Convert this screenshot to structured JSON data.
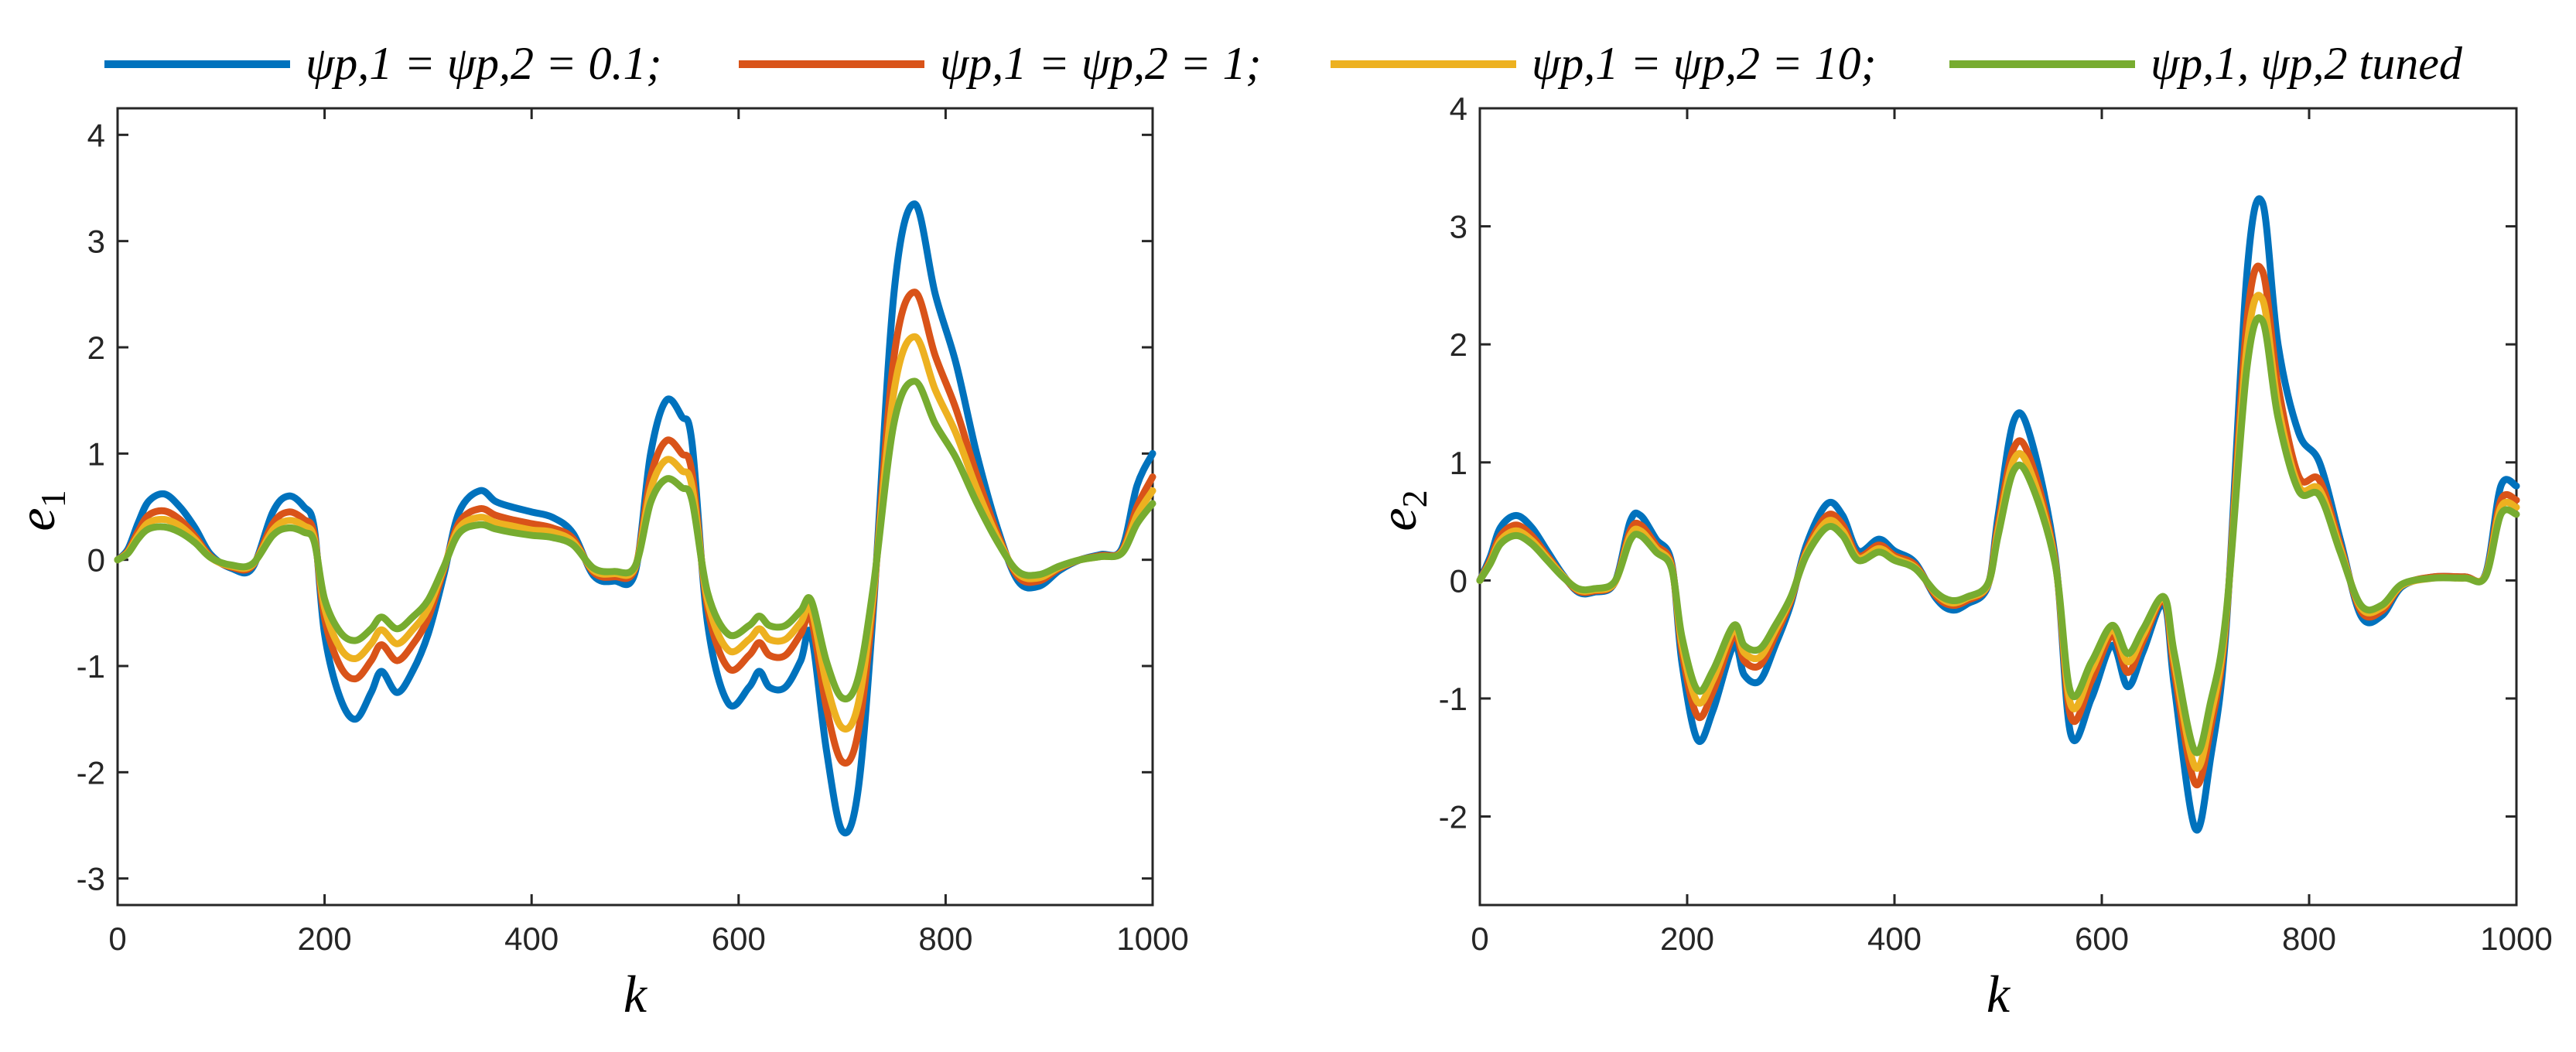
{
  "legend": [
    {
      "label": "ψp,1 = ψp,2 = 0.1;",
      "color": "#0072BD"
    },
    {
      "label": "ψp,1 = ψp,2 = 1;",
      "color": "#D95319"
    },
    {
      "label": "ψp,1 = ψp,2 = 10;",
      "color": "#EDB120"
    },
    {
      "label": "ψp,1,  ψp,2 tuned",
      "color": "#77AC30"
    }
  ],
  "chart_data": [
    {
      "type": "line",
      "title": "",
      "xlabel": "k",
      "ylabel": "e1",
      "xlim": [
        0,
        1000
      ],
      "ylim": [
        -3.25,
        4.25
      ],
      "xticks": [
        "0",
        "200",
        "400",
        "600",
        "800",
        "1000"
      ],
      "yticks": [
        "-3",
        "-2",
        "-1",
        "0",
        "1",
        "2",
        "3",
        "4"
      ],
      "x": [
        0,
        10,
        20,
        30,
        45,
        60,
        75,
        90,
        110,
        130,
        150,
        165,
        180,
        190,
        200,
        215,
        230,
        245,
        255,
        270,
        285,
        300,
        315,
        330,
        350,
        365,
        380,
        400,
        420,
        440,
        460,
        480,
        500,
        515,
        530,
        545,
        555,
        570,
        590,
        610,
        620,
        630,
        645,
        660,
        670,
        685,
        700,
        715,
        730,
        750,
        770,
        790,
        810,
        830,
        850,
        870,
        890,
        910,
        930,
        950,
        970,
        985,
        1000
      ],
      "series": [
        {
          "name": "ψp,1 = ψp,2 = 0.1",
          "values": [
            0,
            0.1,
            0.35,
            0.55,
            0.62,
            0.5,
            0.3,
            0.05,
            -0.08,
            -0.08,
            0.45,
            0.6,
            0.5,
            0.3,
            -0.7,
            -1.3,
            -1.5,
            -1.25,
            -1.05,
            -1.25,
            -1.05,
            -0.7,
            -0.15,
            0.45,
            0.65,
            0.55,
            0.5,
            0.45,
            0.4,
            0.25,
            -0.15,
            -0.2,
            -0.12,
            1.0,
            1.5,
            1.35,
            1.1,
            -0.6,
            -1.35,
            -1.2,
            -1.05,
            -1.2,
            -1.2,
            -0.95,
            -0.7,
            -1.8,
            -2.55,
            -2.2,
            -0.5,
            2.5,
            3.35,
            2.5,
            1.85,
            1.0,
            0.3,
            -0.2,
            -0.25,
            -0.1,
            0,
            0.05,
            0.1,
            0.7,
            1.0
          ]
        },
        {
          "name": "ψp,1 = ψp,2 = 1",
          "values": [
            0,
            0.08,
            0.27,
            0.42,
            0.46,
            0.38,
            0.22,
            0.03,
            -0.07,
            -0.06,
            0.34,
            0.45,
            0.38,
            0.24,
            -0.55,
            -1.0,
            -1.12,
            -0.95,
            -0.8,
            -0.95,
            -0.8,
            -0.55,
            -0.1,
            0.35,
            0.48,
            0.42,
            0.38,
            0.34,
            0.3,
            0.2,
            -0.12,
            -0.16,
            -0.08,
            0.78,
            1.12,
            1.0,
            0.82,
            -0.45,
            -1.02,
            -0.9,
            -0.78,
            -0.9,
            -0.9,
            -0.7,
            -0.55,
            -1.4,
            -1.9,
            -1.65,
            -0.4,
            1.9,
            2.52,
            1.92,
            1.42,
            0.8,
            0.25,
            -0.16,
            -0.2,
            -0.08,
            0,
            0.04,
            0.08,
            0.5,
            0.78
          ]
        },
        {
          "name": "ψp,1 = ψp,2 = 10",
          "values": [
            0,
            0.07,
            0.23,
            0.35,
            0.38,
            0.32,
            0.19,
            0.02,
            -0.06,
            -0.05,
            0.28,
            0.37,
            0.32,
            0.2,
            -0.45,
            -0.83,
            -0.93,
            -0.79,
            -0.66,
            -0.79,
            -0.66,
            -0.46,
            -0.08,
            0.3,
            0.4,
            0.35,
            0.32,
            0.28,
            0.26,
            0.17,
            -0.1,
            -0.13,
            -0.07,
            0.66,
            0.94,
            0.84,
            0.69,
            -0.38,
            -0.85,
            -0.75,
            -0.65,
            -0.75,
            -0.75,
            -0.59,
            -0.46,
            -1.17,
            -1.58,
            -1.38,
            -0.33,
            1.58,
            2.1,
            1.6,
            1.19,
            0.67,
            0.21,
            -0.13,
            -0.17,
            -0.07,
            0,
            0.03,
            0.07,
            0.42,
            0.65
          ]
        },
        {
          "name": "ψp,1,  ψp,2 tuned",
          "values": [
            0,
            0.06,
            0.2,
            0.29,
            0.31,
            0.26,
            0.16,
            0.02,
            -0.05,
            -0.04,
            0.23,
            0.3,
            0.26,
            0.17,
            -0.37,
            -0.68,
            -0.76,
            -0.65,
            -0.54,
            -0.65,
            -0.54,
            -0.38,
            -0.07,
            0.25,
            0.33,
            0.29,
            0.26,
            0.23,
            0.21,
            0.14,
            -0.08,
            -0.11,
            -0.06,
            0.54,
            0.76,
            0.68,
            0.56,
            -0.31,
            -0.7,
            -0.62,
            -0.53,
            -0.62,
            -0.62,
            -0.48,
            -0.38,
            -0.96,
            -1.3,
            -1.13,
            -0.27,
            1.28,
            1.68,
            1.28,
            0.96,
            0.54,
            0.17,
            -0.11,
            -0.14,
            -0.06,
            0,
            0.03,
            0.06,
            0.34,
            0.53
          ]
        }
      ]
    },
    {
      "type": "line",
      "title": "",
      "xlabel": "k",
      "ylabel": "e2",
      "xlim": [
        0,
        1000
      ],
      "ylim": [
        -2.75,
        4.0
      ],
      "xticks": [
        "0",
        "200",
        "400",
        "600",
        "800",
        "1000"
      ],
      "yticks": [
        "-2",
        "-1",
        "0",
        "1",
        "2",
        "3",
        "4"
      ],
      "x": [
        0,
        10,
        20,
        35,
        50,
        65,
        80,
        95,
        110,
        130,
        145,
        155,
        170,
        185,
        195,
        210,
        225,
        245,
        255,
        270,
        285,
        300,
        315,
        335,
        350,
        365,
        385,
        400,
        420,
        440,
        455,
        470,
        490,
        500,
        515,
        530,
        555,
        570,
        590,
        610,
        625,
        640,
        660,
        670,
        690,
        705,
        720,
        740,
        755,
        770,
        790,
        810,
        830,
        850,
        870,
        890,
        920,
        950,
        970,
        985,
        1000
      ],
      "series": [
        {
          "name": "ψp,1 = ψp,2 = 0.1",
          "values": [
            0,
            0.2,
            0.45,
            0.55,
            0.45,
            0.25,
            0.05,
            -0.1,
            -0.1,
            -0.02,
            0.5,
            0.55,
            0.35,
            0.15,
            -0.7,
            -1.35,
            -1.1,
            -0.55,
            -0.8,
            -0.85,
            -0.55,
            -0.2,
            0.3,
            0.65,
            0.55,
            0.25,
            0.35,
            0.25,
            0.15,
            -0.15,
            -0.25,
            -0.2,
            -0.05,
            0.55,
            1.35,
            1.25,
            0.2,
            -1.3,
            -1.0,
            -0.55,
            -0.9,
            -0.6,
            -0.2,
            -0.9,
            -2.1,
            -1.5,
            -0.4,
            2.6,
            3.2,
            2.0,
            1.25,
            1.0,
            0.35,
            -0.3,
            -0.3,
            -0.05,
            0.03,
            0.03,
            0.05,
            0.8,
            0.8
          ]
        },
        {
          "name": "ψp,1 = ψp,2 = 1",
          "values": [
            0,
            0.17,
            0.38,
            0.47,
            0.38,
            0.21,
            0.04,
            -0.09,
            -0.09,
            -0.02,
            0.42,
            0.47,
            0.3,
            0.13,
            -0.6,
            -1.15,
            -0.94,
            -0.47,
            -0.68,
            -0.72,
            -0.47,
            -0.17,
            0.25,
            0.55,
            0.47,
            0.21,
            0.3,
            0.21,
            0.13,
            -0.13,
            -0.21,
            -0.17,
            -0.04,
            0.47,
            1.12,
            1.05,
            0.17,
            -1.15,
            -0.85,
            -0.47,
            -0.78,
            -0.51,
            -0.17,
            -0.77,
            -1.72,
            -1.25,
            -0.34,
            2.2,
            2.62,
            1.65,
            0.88,
            0.85,
            0.3,
            -0.26,
            -0.26,
            -0.04,
            0.03,
            0.03,
            0.04,
            0.68,
            0.68
          ]
        },
        {
          "name": "ψp,1 = ψp,2 = 10",
          "values": [
            0,
            0.15,
            0.34,
            0.42,
            0.34,
            0.19,
            0.04,
            -0.08,
            -0.08,
            -0.02,
            0.38,
            0.42,
            0.27,
            0.11,
            -0.54,
            -1.03,
            -0.84,
            -0.42,
            -0.61,
            -0.65,
            -0.42,
            -0.15,
            0.23,
            0.5,
            0.42,
            0.19,
            0.27,
            0.19,
            0.11,
            -0.11,
            -0.19,
            -0.15,
            -0.04,
            0.42,
            1.02,
            0.95,
            0.15,
            -1.05,
            -0.76,
            -0.42,
            -0.69,
            -0.46,
            -0.15,
            -0.69,
            -1.58,
            -1.15,
            -0.31,
            1.98,
            2.38,
            1.48,
            0.8,
            0.77,
            0.27,
            -0.23,
            -0.23,
            -0.04,
            0.02,
            0.02,
            0.04,
            0.62,
            0.62
          ]
        },
        {
          "name": "ψp,1,  ψp,2 tuned",
          "values": [
            0,
            0.14,
            0.31,
            0.38,
            0.31,
            0.17,
            0.03,
            -0.07,
            -0.07,
            -0.01,
            0.34,
            0.38,
            0.24,
            0.1,
            -0.48,
            -0.93,
            -0.76,
            -0.38,
            -0.55,
            -0.58,
            -0.38,
            -0.14,
            0.21,
            0.45,
            0.38,
            0.17,
            0.24,
            0.17,
            0.1,
            -0.1,
            -0.17,
            -0.14,
            -0.03,
            0.38,
            0.93,
            0.86,
            0.14,
            -0.95,
            -0.69,
            -0.38,
            -0.62,
            -0.41,
            -0.14,
            -0.62,
            -1.45,
            -1.03,
            -0.28,
            1.8,
            2.2,
            1.38,
            0.76,
            0.72,
            0.24,
            -0.21,
            -0.21,
            -0.03,
            0.02,
            0.02,
            0.03,
            0.56,
            0.56
          ]
        }
      ]
    }
  ]
}
